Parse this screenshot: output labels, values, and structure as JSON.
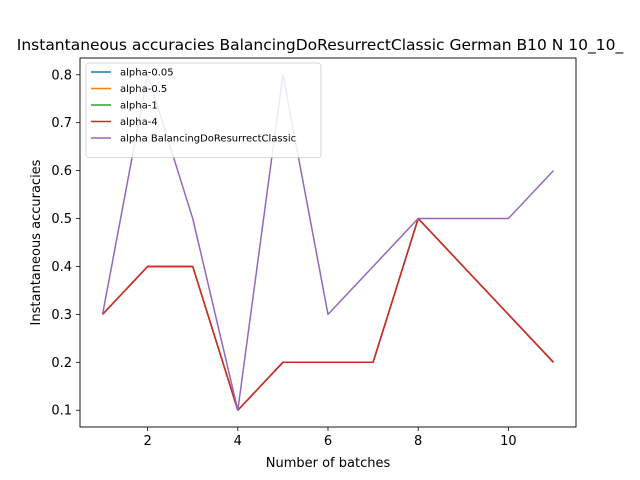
{
  "chart_data": {
    "type": "line",
    "title": "Instantaneous accuracies BalancingDoResurrectClassic German B10 N 10_10_",
    "xlabel": "Number of batches",
    "ylabel": "Instantaneous accuracies",
    "xlim": [
      0.5,
      11.5
    ],
    "ylim": [
      0.065,
      0.835
    ],
    "xticks": [
      2,
      4,
      6,
      8,
      10
    ],
    "yticks": [
      0.1,
      0.2,
      0.3,
      0.4,
      0.5,
      0.6,
      0.7,
      0.8
    ],
    "grid": false,
    "legend_position": "upper left",
    "x": [
      1,
      2,
      3,
      4,
      5,
      6,
      7,
      8,
      9,
      10,
      11
    ],
    "series": [
      {
        "name": "alpha-0.05",
        "color": "#1f77b4",
        "values": [
          0.3,
          0.4,
          0.4,
          0.1,
          0.2,
          0.2,
          0.2,
          0.5,
          0.4,
          0.3,
          0.2
        ]
      },
      {
        "name": "alpha-0.5",
        "color": "#ff7f0e",
        "values": [
          0.3,
          0.4,
          0.4,
          0.1,
          0.2,
          0.2,
          0.2,
          0.5,
          0.4,
          0.3,
          0.2
        ]
      },
      {
        "name": "alpha-1",
        "color": "#2ca02c",
        "values": [
          0.3,
          0.4,
          0.4,
          0.1,
          0.2,
          0.2,
          0.2,
          0.5,
          0.4,
          0.3,
          0.2
        ]
      },
      {
        "name": "alpha-4",
        "color": "#d62728",
        "values": [
          0.3,
          0.4,
          0.4,
          0.1,
          0.2,
          0.2,
          0.2,
          0.5,
          0.4,
          0.3,
          0.2
        ]
      },
      {
        "name": "alpha BalancingDoResurrectClassic",
        "color": "#9467bd",
        "values": [
          0.3,
          0.8,
          0.5,
          0.1,
          0.8,
          0.3,
          0.4,
          0.5,
          0.5,
          0.5,
          0.6
        ]
      }
    ]
  }
}
